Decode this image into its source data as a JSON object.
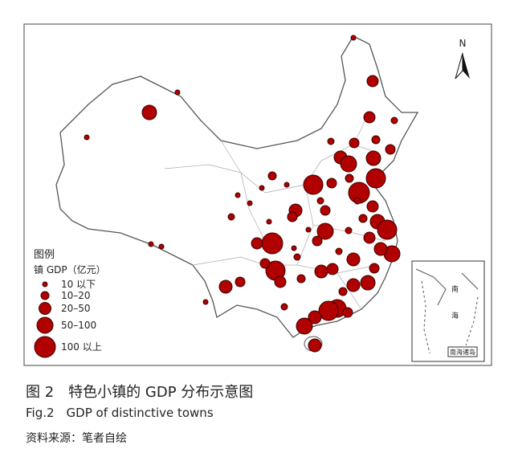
{
  "map": {
    "north": "N",
    "legend": {
      "title": "图例",
      "subtitle": "镇 GDP（亿元）",
      "items": [
        "10 以下",
        "10–20",
        "20–50",
        "50–100",
        "100 以上"
      ]
    },
    "inset": {
      "labels": [
        "南",
        "海"
      ],
      "name": "南海诸岛"
    }
  },
  "caption": {
    "title": "图 2　特色小镇的 GDP 分布示意图",
    "english": "Fig.2　GDP of distinctive towns",
    "source": "资料来源：笔者自绘"
  }
}
